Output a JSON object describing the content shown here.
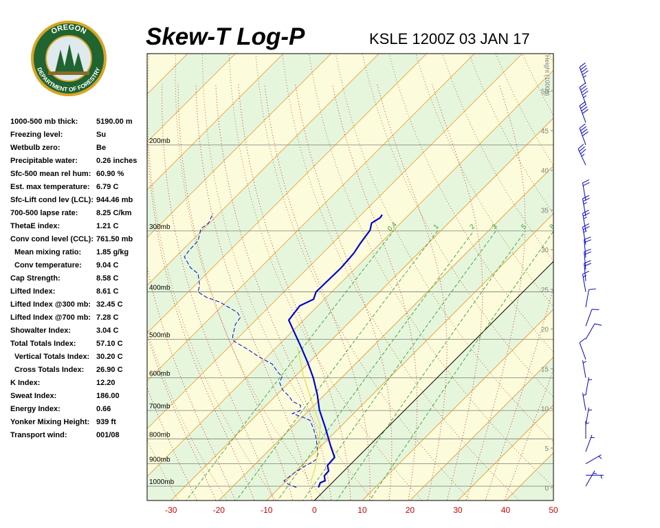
{
  "logo": {
    "top": "OREGON",
    "bottom": "DEPARTMENT OF FORESTRY"
  },
  "indices": [
    [
      "1000-500 mb thick:",
      "5190.00 m"
    ],
    [
      "Freezing level:",
      "Su"
    ],
    [
      "Wetbulb zero:",
      "Be"
    ],
    [
      "Precipitable water:",
      "0.26 inches"
    ],
    [
      "Sfc-500 mean rel hum:",
      "60.90 %"
    ],
    [
      "Est. max temperature:",
      "6.79 C"
    ],
    [
      "Sfc-Lift cond lev (LCL):",
      "944.46 mb"
    ],
    [
      "700-500 lapse rate:",
      "8.25 C/km"
    ],
    [
      "ThetaE index:",
      "1.21 C"
    ],
    [
      "Conv cond level (CCL):",
      "761.50 mb"
    ],
    [
      "Mean mixing ratio:",
      "1.85 g/kg"
    ],
    [
      "Conv temperature:",
      "9.04 C"
    ],
    [
      "Cap Strength:",
      "8.58 C"
    ],
    [
      "Lifted Index:",
      "8.61 C"
    ],
    [
      "Lifted Index @300 mb:",
      "32.45 C"
    ],
    [
      "Lifted Index @700 mb:",
      "7.28 C"
    ],
    [
      "Showalter Index:",
      "3.04 C"
    ],
    [
      "Total Totals Index:",
      "57.10 C"
    ],
    [
      "Vertical Totals Index:",
      "30.20 C"
    ],
    [
      "Cross Totals Index:",
      "26.90 C"
    ],
    [
      "K Index:",
      "12.20"
    ],
    [
      "Sweat Index:",
      "186.00"
    ],
    [
      "Energy Index:",
      "0.66"
    ],
    [
      "Yonker Mixing Height:",
      "939 ft"
    ],
    [
      "Transport wind:",
      "001/08"
    ]
  ],
  "chart_data": {
    "type": "skewt",
    "title": "Skew-T Log-P",
    "subtitle": "KSLE 1200Z 03 JAN 17",
    "skew": 45,
    "xlim": [
      -35,
      50
    ],
    "xticks": [
      -30,
      -20,
      -10,
      0,
      10,
      20,
      30,
      40,
      50
    ],
    "log_y": true,
    "ylim": [
      1070,
      130
    ],
    "yticks": [
      {
        "value": 1000,
        "label": "1000mb"
      },
      {
        "value": 900,
        "label": "900mb"
      },
      {
        "value": 800,
        "label": "800mb"
      },
      {
        "value": 700,
        "label": "700mb"
      },
      {
        "value": 600,
        "label": "600mb"
      },
      {
        "value": 500,
        "label": "500mb"
      },
      {
        "value": 400,
        "label": "400mb"
      },
      {
        "value": 300,
        "label": "300mb"
      },
      {
        "value": 200,
        "label": "200mb"
      }
    ],
    "y2label": "Height (1000ft)",
    "y2lim": [
      -1.6,
      54.7
    ],
    "y2ticks": [
      0,
      5,
      10,
      15,
      20,
      25,
      30,
      35,
      40,
      45,
      50
    ],
    "mixing_ratios": [
      0.4,
      1,
      2,
      3,
      5,
      8
    ],
    "series": [
      {
        "color": "#0000cc",
        "style": "solid",
        "pressure": [
          1006,
          984,
          975,
          952,
          931,
          907,
          873,
          829,
          757,
          698,
          650,
          600,
          557,
          518,
          457,
          427,
          414,
          400,
          357,
          333,
          318,
          299,
          289,
          282,
          278
        ],
        "values": [
          -1.9,
          -2.5,
          -1.9,
          -3.1,
          -3.2,
          -4.6,
          -4.8,
          -7.9,
          -13.1,
          -17.9,
          -21.5,
          -25.9,
          -30.4,
          -35,
          -43.1,
          -43.8,
          -42.3,
          -43.3,
          -43.1,
          -43.5,
          -44.2,
          -44.9,
          -46.1,
          -45.4,
          -45.6
        ]
      },
      {
        "color": "#0000cc",
        "style": "dashed",
        "pressure": [
          1006,
          990,
          975,
          944,
          914,
          891,
          880,
          857,
          829,
          803,
          764,
          733,
          723,
          710,
          701,
          683,
          670,
          656,
          635,
          613,
          596,
          585,
          562,
          545,
          523,
          505,
          494,
          466,
          451,
          441,
          420,
          410,
          400,
          388,
          367,
          357,
          339,
          330,
          314,
          297,
          289,
          276
        ],
        "values": [
          -6.5,
          -9,
          -10.5,
          -10.1,
          -9.4,
          -8.4,
          -8.2,
          -9.1,
          -10.8,
          -12.3,
          -15.1,
          -17.7,
          -19.7,
          -22.8,
          -21.8,
          -22.8,
          -25.4,
          -26.9,
          -29.8,
          -32,
          -32.7,
          -34.4,
          -37.4,
          -41.3,
          -45.9,
          -50.1,
          -51.4,
          -53.4,
          -53.8,
          -55.4,
          -61.2,
          -65.2,
          -68,
          -69,
          -71.8,
          -74.6,
          -78.2,
          -78.5,
          -78.7,
          -80.6,
          -80.2,
          -81.3
        ]
      },
      {
        "color": "#e8d840",
        "style": "solid",
        "pressure": [
          975,
          914,
          829,
          752,
          683,
          590,
          518
        ],
        "values": [
          -4.8,
          -6.8,
          -10.5,
          -14.4,
          -20.2,
          -28.8,
          -35.7
        ]
      }
    ],
    "winds": {
      "pressure": [
        150,
        165,
        180,
        200,
        220,
        260,
        280,
        300,
        320,
        340,
        360,
        380,
        400,
        430,
        470,
        500,
        550,
        600,
        650,
        700,
        750,
        800,
        850,
        900,
        950,
        1000
      ],
      "direction": [
        340,
        340,
        340,
        340,
        335,
        350,
        350,
        350,
        350,
        355,
        355,
        355,
        350,
        10,
        20,
        30,
        340,
        350,
        10,
        350,
        10,
        0,
        20,
        60,
        90,
        30
      ],
      "speed": [
        45,
        45,
        40,
        40,
        35,
        20,
        25,
        25,
        25,
        20,
        20,
        20,
        15,
        10,
        10,
        10,
        10,
        5,
        5,
        5,
        5,
        5,
        5,
        5,
        5,
        5
      ]
    }
  }
}
